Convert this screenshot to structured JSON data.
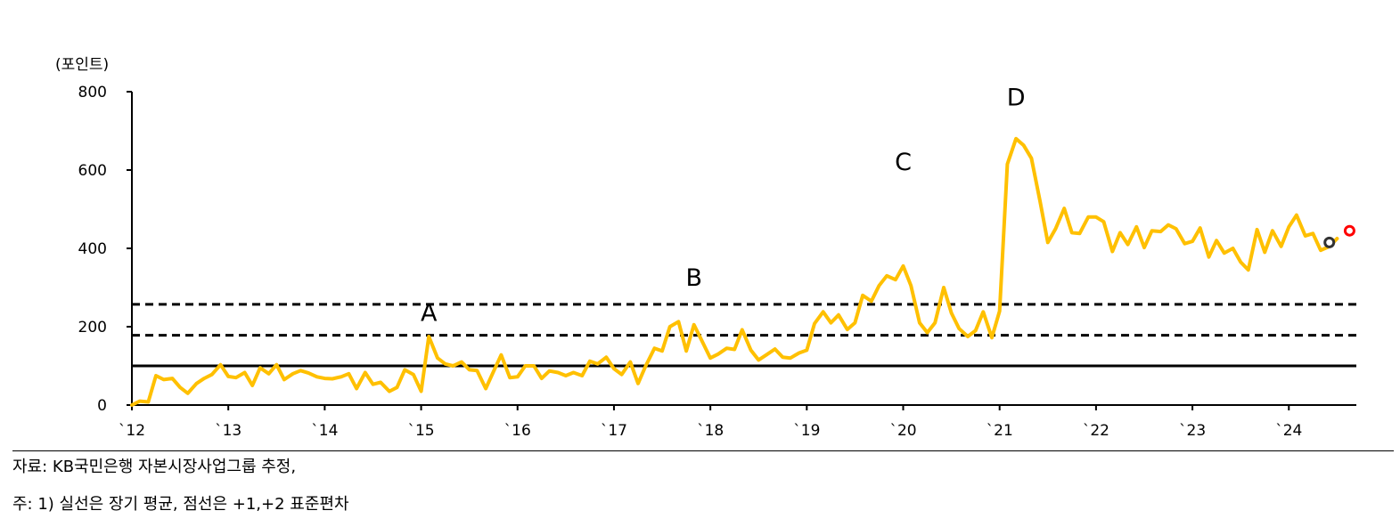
{
  "chart_data": {
    "type": "line",
    "ylabel": "(포인트)",
    "ylim": [
      0,
      800
    ],
    "yticks": [
      0,
      200,
      400,
      600,
      800
    ],
    "xlim": [
      2012.0,
      2024.7
    ],
    "xticks": [
      {
        "x": 2012,
        "label": "`12"
      },
      {
        "x": 2013,
        "label": "`13"
      },
      {
        "x": 2014,
        "label": "`14"
      },
      {
        "x": 2015,
        "label": "`15"
      },
      {
        "x": 2016,
        "label": "`16"
      },
      {
        "x": 2017,
        "label": "`17"
      },
      {
        "x": 2018,
        "label": "`18"
      },
      {
        "x": 2019,
        "label": "`19"
      },
      {
        "x": 2020,
        "label": "`20"
      },
      {
        "x": 2021,
        "label": "`21"
      },
      {
        "x": 2022,
        "label": "`22"
      },
      {
        "x": 2023,
        "label": "`23"
      },
      {
        "x": 2024,
        "label": "`24"
      }
    ],
    "line_color": "#FFC000",
    "series": [
      {
        "values": [
          [
            2012.0,
            0
          ],
          [
            2012.08,
            10
          ],
          [
            2012.17,
            8
          ],
          [
            2012.25,
            75
          ],
          [
            2012.33,
            65
          ],
          [
            2012.42,
            68
          ],
          [
            2012.5,
            45
          ],
          [
            2012.58,
            30
          ],
          [
            2012.67,
            55
          ],
          [
            2012.75,
            68
          ],
          [
            2012.83,
            78
          ],
          [
            2012.92,
            103
          ],
          [
            2013.0,
            73
          ],
          [
            2013.08,
            70
          ],
          [
            2013.17,
            83
          ],
          [
            2013.25,
            50
          ],
          [
            2013.33,
            95
          ],
          [
            2013.42,
            80
          ],
          [
            2013.5,
            103
          ],
          [
            2013.58,
            65
          ],
          [
            2013.67,
            80
          ],
          [
            2013.75,
            88
          ],
          [
            2013.83,
            82
          ],
          [
            2013.92,
            72
          ],
          [
            2014.0,
            68
          ],
          [
            2014.08,
            67
          ],
          [
            2014.17,
            72
          ],
          [
            2014.25,
            80
          ],
          [
            2014.33,
            42
          ],
          [
            2014.42,
            83
          ],
          [
            2014.5,
            53
          ],
          [
            2014.58,
            58
          ],
          [
            2014.67,
            35
          ],
          [
            2014.75,
            45
          ],
          [
            2014.83,
            90
          ],
          [
            2014.92,
            78
          ],
          [
            2015.0,
            35
          ],
          [
            2015.08,
            175
          ],
          [
            2015.17,
            120
          ],
          [
            2015.25,
            105
          ],
          [
            2015.33,
            100
          ],
          [
            2015.42,
            110
          ],
          [
            2015.5,
            90
          ],
          [
            2015.58,
            88
          ],
          [
            2015.67,
            42
          ],
          [
            2015.75,
            85
          ],
          [
            2015.83,
            128
          ],
          [
            2015.92,
            70
          ],
          [
            2016.0,
            72
          ],
          [
            2016.08,
            100
          ],
          [
            2016.17,
            100
          ],
          [
            2016.25,
            68
          ],
          [
            2016.33,
            87
          ],
          [
            2016.42,
            83
          ],
          [
            2016.5,
            75
          ],
          [
            2016.58,
            83
          ],
          [
            2016.67,
            75
          ],
          [
            2016.75,
            112
          ],
          [
            2016.83,
            105
          ],
          [
            2016.92,
            122
          ],
          [
            2017.0,
            93
          ],
          [
            2017.08,
            78
          ],
          [
            2017.17,
            110
          ],
          [
            2017.25,
            55
          ],
          [
            2017.33,
            100
          ],
          [
            2017.42,
            145
          ],
          [
            2017.5,
            138
          ],
          [
            2017.58,
            200
          ],
          [
            2017.67,
            213
          ],
          [
            2017.75,
            138
          ],
          [
            2017.83,
            205
          ],
          [
            2017.92,
            160
          ],
          [
            2018.0,
            120
          ],
          [
            2018.08,
            130
          ],
          [
            2018.17,
            145
          ],
          [
            2018.25,
            142
          ],
          [
            2018.33,
            192
          ],
          [
            2018.42,
            140
          ],
          [
            2018.5,
            115
          ],
          [
            2018.58,
            128
          ],
          [
            2018.67,
            143
          ],
          [
            2018.75,
            122
          ],
          [
            2018.83,
            120
          ],
          [
            2018.92,
            133
          ],
          [
            2019.0,
            140
          ],
          [
            2019.08,
            208
          ],
          [
            2019.17,
            238
          ],
          [
            2019.25,
            210
          ],
          [
            2019.33,
            230
          ],
          [
            2019.42,
            193
          ],
          [
            2019.5,
            210
          ],
          [
            2019.58,
            280
          ],
          [
            2019.67,
            265
          ],
          [
            2019.75,
            305
          ],
          [
            2019.83,
            330
          ],
          [
            2019.92,
            320
          ],
          [
            2020.0,
            355
          ],
          [
            2020.08,
            305
          ],
          [
            2020.17,
            210
          ],
          [
            2020.25,
            185
          ],
          [
            2020.33,
            210
          ],
          [
            2020.42,
            300
          ],
          [
            2020.5,
            235
          ],
          [
            2020.58,
            195
          ],
          [
            2020.67,
            175
          ],
          [
            2020.75,
            190
          ],
          [
            2020.83,
            238
          ],
          [
            2020.92,
            172
          ],
          [
            2021.0,
            240
          ],
          [
            2021.08,
            615
          ],
          [
            2021.17,
            680
          ],
          [
            2021.25,
            663
          ],
          [
            2021.33,
            630
          ],
          [
            2021.42,
            520
          ],
          [
            2021.5,
            415
          ],
          [
            2021.58,
            450
          ],
          [
            2021.67,
            502
          ],
          [
            2021.75,
            440
          ],
          [
            2021.83,
            438
          ],
          [
            2021.92,
            480
          ],
          [
            2022.0,
            480
          ],
          [
            2022.08,
            468
          ],
          [
            2022.17,
            392
          ],
          [
            2022.25,
            440
          ],
          [
            2022.33,
            410
          ],
          [
            2022.42,
            455
          ],
          [
            2022.5,
            402
          ],
          [
            2022.58,
            445
          ],
          [
            2022.67,
            443
          ],
          [
            2022.75,
            460
          ],
          [
            2022.83,
            450
          ],
          [
            2022.92,
            412
          ],
          [
            2023.0,
            418
          ],
          [
            2023.08,
            452
          ],
          [
            2023.17,
            378
          ],
          [
            2023.25,
            420
          ],
          [
            2023.33,
            388
          ],
          [
            2023.42,
            400
          ],
          [
            2023.5,
            365
          ],
          [
            2023.58,
            345
          ],
          [
            2023.67,
            448
          ],
          [
            2023.75,
            390
          ],
          [
            2023.83,
            445
          ],
          [
            2023.92,
            405
          ],
          [
            2024.0,
            455
          ],
          [
            2024.08,
            485
          ],
          [
            2024.17,
            432
          ],
          [
            2024.25,
            438
          ],
          [
            2024.33,
            395
          ],
          [
            2024.42,
            405
          ],
          [
            2024.5,
            425
          ]
        ]
      }
    ],
    "reference_lines": [
      {
        "y": 100,
        "style": "solid",
        "color": "#000000"
      },
      {
        "y": 178,
        "style": "dashed",
        "color": "#000000"
      },
      {
        "y": 257,
        "style": "dashed",
        "color": "#000000"
      }
    ],
    "markers": [
      {
        "x": 2024.42,
        "y": 415,
        "color": "#333333"
      },
      {
        "x": 2024.63,
        "y": 445,
        "color": "#FF0000"
      }
    ],
    "annotations": [
      {
        "x": 2015.08,
        "y": 215,
        "text": "A"
      },
      {
        "x": 2017.83,
        "y": 305,
        "text": "B"
      },
      {
        "x": 2020.0,
        "y": 600,
        "text": "C"
      },
      {
        "x": 2021.17,
        "y": 765,
        "text": "D"
      }
    ],
    "notes": {
      "source": "자료: KB국민은행 자본시장사업그룹 추정,",
      "footnote": "주: 1) 실선은 장기 평균, 점선은 +1,+2 표준편차"
    }
  }
}
